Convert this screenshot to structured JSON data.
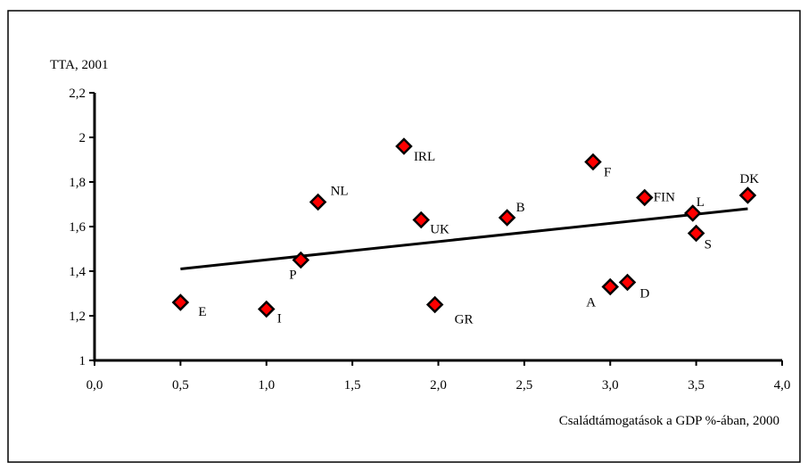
{
  "chart_data": {
    "type": "scatter",
    "title": "",
    "xlabel": "Családtámogatások a GDP %-ában, 2000",
    "ylabel": "TTA, 2001",
    "xlim": [
      0,
      4
    ],
    "ylim": [
      1,
      2.2
    ],
    "x_ticks": [
      "0,0",
      "0,5",
      "1,0",
      "1,5",
      "2,0",
      "2,5",
      "3,0",
      "3,5",
      "4,0"
    ],
    "y_ticks": [
      "1",
      "1,2",
      "1,4",
      "1,6",
      "1,8",
      "2",
      "2,2"
    ],
    "grid": false,
    "marker_color": "#ff0000",
    "marker_shape": "diamond",
    "points": [
      {
        "label": "E",
        "x": 0.5,
        "y": 1.26
      },
      {
        "label": "I",
        "x": 1.0,
        "y": 1.23
      },
      {
        "label": "P",
        "x": 1.2,
        "y": 1.45
      },
      {
        "label": "NL",
        "x": 1.3,
        "y": 1.71
      },
      {
        "label": "IRL",
        "x": 1.8,
        "y": 1.96
      },
      {
        "label": "UK",
        "x": 1.9,
        "y": 1.63
      },
      {
        "label": "GR",
        "x": 1.98,
        "y": 1.25
      },
      {
        "label": "B",
        "x": 2.4,
        "y": 1.64
      },
      {
        "label": "F",
        "x": 2.9,
        "y": 1.89
      },
      {
        "label": "A",
        "x": 3.0,
        "y": 1.33
      },
      {
        "label": "D",
        "x": 3.1,
        "y": 1.35
      },
      {
        "label": "FIN",
        "x": 3.2,
        "y": 1.73
      },
      {
        "label": "L",
        "x": 3.48,
        "y": 1.66
      },
      {
        "label": "S",
        "x": 3.5,
        "y": 1.57
      },
      {
        "label": "DK",
        "x": 3.8,
        "y": 1.74
      }
    ],
    "trendline": {
      "x": [
        0.5,
        3.8
      ],
      "y": [
        1.41,
        1.68
      ]
    }
  }
}
